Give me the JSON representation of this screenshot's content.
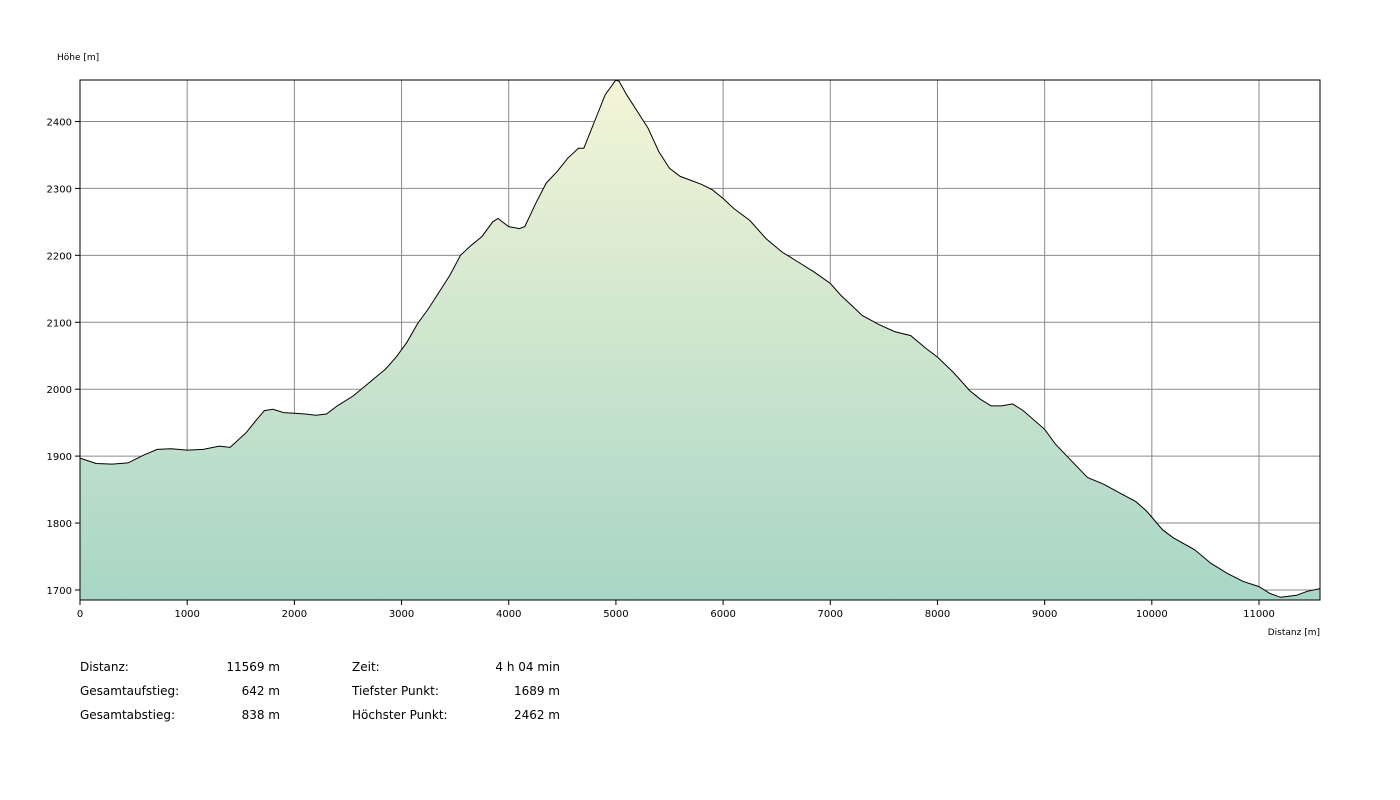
{
  "chart_data": {
    "type": "area",
    "ylabel": "Höhe [m]",
    "xlabel": "Distanz [m]",
    "xlim": [
      0,
      11569
    ],
    "ylim": [
      1685,
      2462
    ],
    "xticks": [
      0,
      1000,
      2000,
      3000,
      4000,
      5000,
      6000,
      7000,
      8000,
      9000,
      10000,
      11000
    ],
    "yticks": [
      1700,
      1800,
      1900,
      2000,
      2100,
      2200,
      2300,
      2400
    ],
    "grid": true,
    "legend": "none",
    "colors": {
      "fill_top": "#f4f5d6",
      "fill_bottom": "#a8d6c6",
      "line": "#000000",
      "grid": "#8a8a8a"
    },
    "x": [
      0,
      150,
      300,
      450,
      600,
      720,
      850,
      1000,
      1150,
      1300,
      1400,
      1550,
      1650,
      1720,
      1800,
      1900,
      2000,
      2100,
      2200,
      2300,
      2400,
      2550,
      2700,
      2850,
      2950,
      3050,
      3150,
      3250,
      3350,
      3450,
      3550,
      3650,
      3750,
      3850,
      3900,
      4000,
      4100,
      4150,
      4250,
      4350,
      4450,
      4550,
      4650,
      4700,
      4800,
      4900,
      5000,
      5030,
      5100,
      5200,
      5300,
      5400,
      5500,
      5600,
      5700,
      5800,
      5900,
      6000,
      6100,
      6250,
      6400,
      6550,
      6700,
      6850,
      7000,
      7100,
      7200,
      7300,
      7450,
      7600,
      7750,
      7900,
      8000,
      8150,
      8300,
      8400,
      8500,
      8600,
      8700,
      8800,
      9000,
      9100,
      9250,
      9400,
      9550,
      9700,
      9850,
      9950,
      10100,
      10200,
      10400,
      10550,
      10700,
      10850,
      11000,
      11100,
      11200,
      11350,
      11450,
      11569
    ],
    "y": [
      1897,
      1889,
      1888,
      1890,
      1902,
      1910,
      1911,
      1909,
      1910,
      1915,
      1913,
      1935,
      1955,
      1968,
      1970,
      1965,
      1964,
      1963,
      1961,
      1963,
      1975,
      1990,
      2010,
      2030,
      2048,
      2070,
      2098,
      2120,
      2145,
      2170,
      2200,
      2215,
      2228,
      2250,
      2255,
      2243,
      2240,
      2243,
      2277,
      2308,
      2325,
      2345,
      2360,
      2360,
      2400,
      2440,
      2462,
      2460,
      2440,
      2415,
      2390,
      2355,
      2330,
      2318,
      2312,
      2306,
      2298,
      2285,
      2270,
      2252,
      2225,
      2205,
      2190,
      2175,
      2158,
      2140,
      2125,
      2110,
      2097,
      2086,
      2080,
      2060,
      2048,
      2025,
      1998,
      1985,
      1975,
      1975,
      1978,
      1968,
      1940,
      1918,
      1893,
      1868,
      1858,
      1845,
      1832,
      1818,
      1790,
      1778,
      1760,
      1740,
      1725,
      1713,
      1705,
      1695,
      1689,
      1692,
      1698,
      1702
    ]
  },
  "stats_left": [
    {
      "label": "Distanz:",
      "value": "11569 m"
    },
    {
      "label": "Gesamtaufstieg:",
      "value": "642 m"
    },
    {
      "label": "Gesamtabstieg:",
      "value": "838 m"
    }
  ],
  "stats_right": [
    {
      "label": "Zeit:",
      "value": "4 h 04 min"
    },
    {
      "label": "Tiefster Punkt:",
      "value": "1689 m"
    },
    {
      "label": "Höchster Punkt:",
      "value": "2462 m"
    }
  ]
}
